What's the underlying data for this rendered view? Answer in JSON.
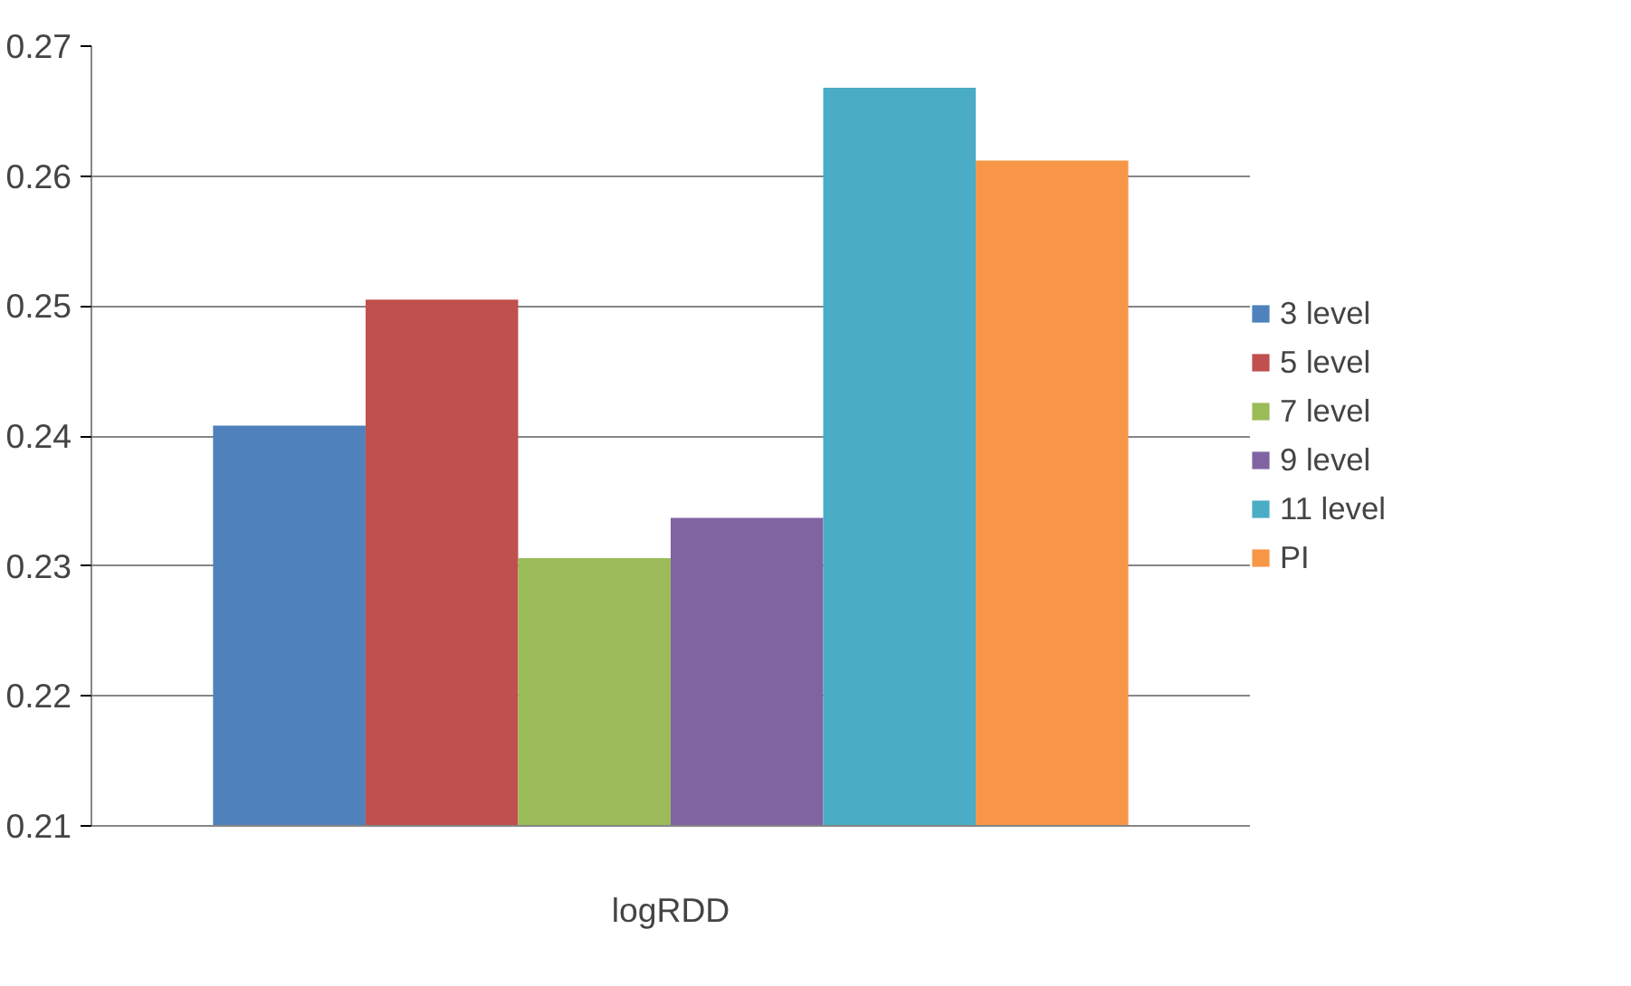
{
  "chart_data": {
    "type": "bar",
    "categories": [
      "logRDD"
    ],
    "series": [
      {
        "name": "3 level",
        "color": "#4f81bd",
        "values": [
          0.2408
        ]
      },
      {
        "name": "5 level",
        "color": "#c0504d",
        "values": [
          0.2505
        ]
      },
      {
        "name": "7 level",
        "color": "#9bbb59",
        "values": [
          0.2306
        ]
      },
      {
        "name": "9 level",
        "color": "#8064a2",
        "values": [
          0.2337
        ]
      },
      {
        "name": "11 level",
        "color": "#4bacc6",
        "values": [
          0.2668
        ]
      },
      {
        "name": "PI",
        "color": "#f79646",
        "values": [
          0.2612
        ]
      }
    ],
    "ylim": [
      0.21,
      0.27
    ],
    "yticks": [
      0.21,
      0.22,
      0.23,
      0.24,
      0.25,
      0.26,
      0.27
    ],
    "grid": "y",
    "legend": "right"
  }
}
